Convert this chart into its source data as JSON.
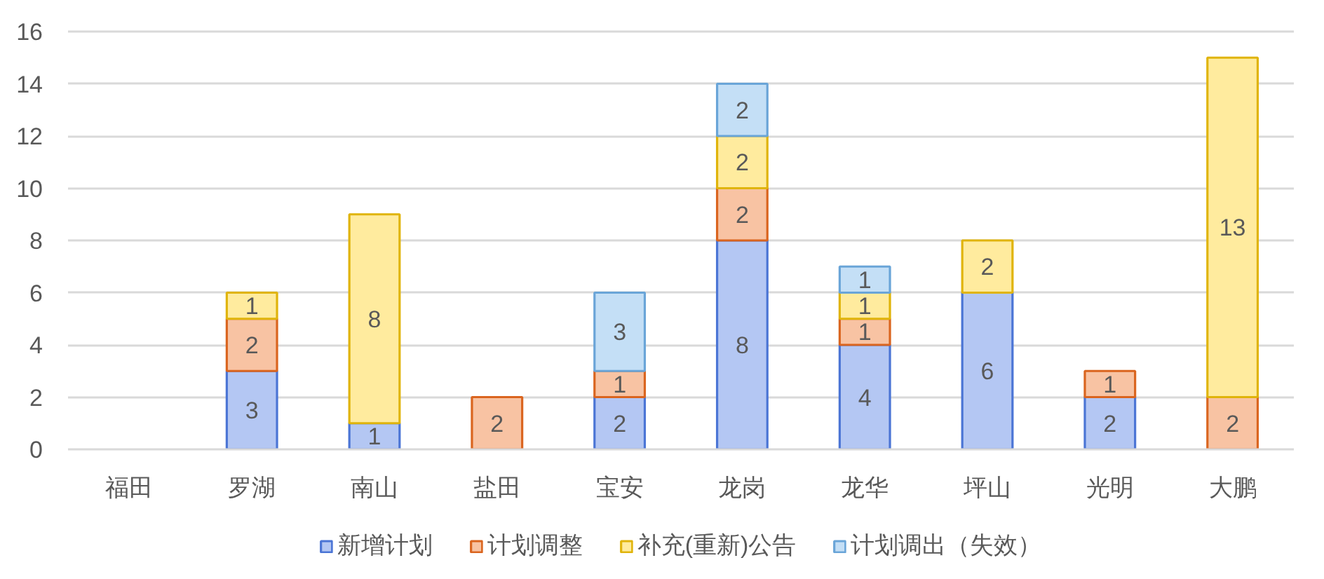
{
  "chart_data": {
    "type": "bar",
    "stacked": true,
    "categories": [
      "福田",
      "罗湖",
      "南山",
      "盐田",
      "宝安",
      "龙岗",
      "龙华",
      "坪山",
      "光明",
      "大鹏"
    ],
    "series": [
      {
        "name": "新增计划",
        "color": "#b4c7f3",
        "values": [
          null,
          3,
          1,
          null,
          2,
          8,
          4,
          6,
          2,
          null
        ]
      },
      {
        "name": "计划调整",
        "color": "#f8c3a3",
        "values": [
          null,
          2,
          null,
          2,
          1,
          2,
          1,
          null,
          1,
          2
        ]
      },
      {
        "name": "补充(重新)公告",
        "color": "#ffeb9e",
        "values": [
          null,
          1,
          8,
          null,
          null,
          2,
          1,
          2,
          null,
          13
        ]
      },
      {
        "name": "计划调出（失效）",
        "color": "#c4dff6",
        "values": [
          null,
          null,
          null,
          null,
          3,
          2,
          1,
          null,
          null,
          null
        ]
      }
    ],
    "ylim": [
      0,
      16
    ],
    "yticks": [
      0,
      2,
      4,
      6,
      8,
      10,
      12,
      14,
      16
    ],
    "grid": "y",
    "legend": "bottom",
    "data_labels": true
  }
}
